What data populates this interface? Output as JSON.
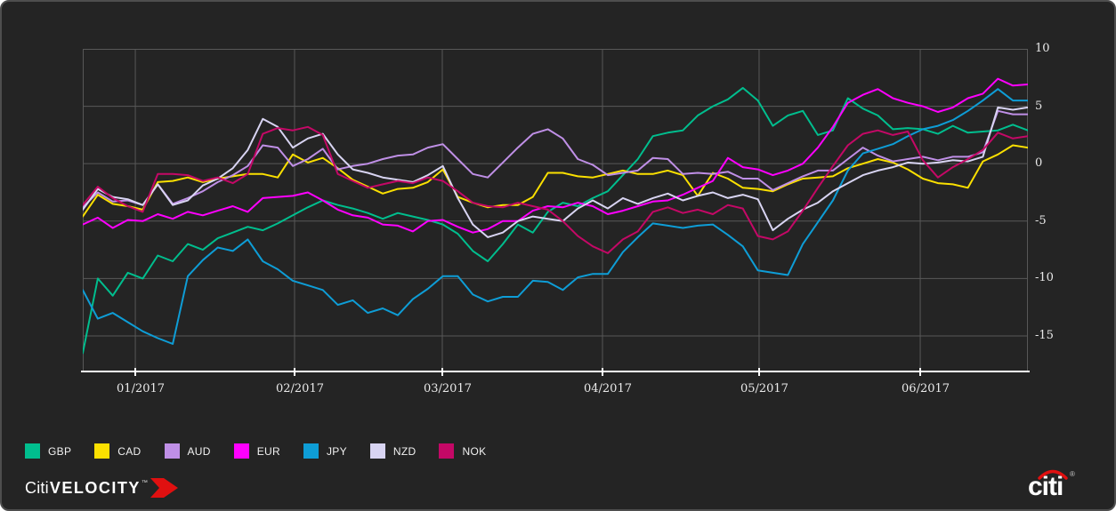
{
  "colors": {
    "page_bg": "#ffffff",
    "panel_bg": "#242424",
    "panel_border": "#4e4e4e",
    "grid": "#585858",
    "axis_line": "#ffffff",
    "tick_text": "#e9e9e9",
    "accent_red": "#e01010"
  },
  "chart_data": {
    "type": "line",
    "title": "",
    "xlabel": "",
    "ylabel": "",
    "grid": true,
    "legend_position": "bottom-left",
    "ylim": [
      -18.1,
      10
    ],
    "y_ticks": [
      {
        "label": "10",
        "value": 10
      },
      {
        "label": "5",
        "value": 5
      },
      {
        "label": "0",
        "value": 0
      },
      {
        "label": "-5",
        "value": -5
      },
      {
        "label": "-10",
        "value": -10
      },
      {
        "label": "-15",
        "value": -15
      }
    ],
    "x_ticks": [
      {
        "label": "01/2017",
        "pos": 0.0556
      },
      {
        "label": "02/2017",
        "pos": 0.2241
      },
      {
        "label": "03/2017",
        "pos": 0.3804
      },
      {
        "label": "04/2017",
        "pos": 0.5499
      },
      {
        "label": "05/2017",
        "pos": 0.7156
      },
      {
        "label": "06/2017",
        "pos": 0.8861
      }
    ],
    "x_range_note": "daily currency performance, late Dec 2016 through late Jun 2017, sampled at 64 evenly spaced points",
    "series": [
      {
        "name": "GBP",
        "color": "#00be8e",
        "values": [
          -16.5,
          -10.0,
          -11.5,
          -9.5,
          -10.0,
          -8.0,
          -8.5,
          -7.0,
          -7.5,
          -6.5,
          -6.0,
          -5.5,
          -5.8,
          -5.2,
          -4.5,
          -3.8,
          -3.2,
          -3.6,
          -3.9,
          -4.3,
          -4.8,
          -4.3,
          -4.6,
          -4.9,
          -5.3,
          -6.1,
          -7.6,
          -8.5,
          -7.0,
          -5.3,
          -6.0,
          -4.2,
          -3.4,
          -3.7,
          -3.0,
          -2.4,
          -1.0,
          0.4,
          2.4,
          2.7,
          2.9,
          4.2,
          5.0,
          5.6,
          6.6,
          5.5,
          3.3,
          4.2,
          4.6,
          2.5,
          2.9,
          5.7,
          4.8,
          4.2,
          3.0,
          3.1,
          3.0,
          2.6,
          3.3,
          2.7,
          2.8,
          2.9,
          3.4,
          2.9
        ]
      },
      {
        "name": "CAD",
        "color": "#fbe000",
        "values": [
          -4.6,
          -2.7,
          -3.5,
          -3.7,
          -4.0,
          -1.6,
          -1.5,
          -1.2,
          -1.6,
          -1.3,
          -1.1,
          -0.9,
          -0.9,
          -1.2,
          0.8,
          0.1,
          0.5,
          -0.4,
          -1.4,
          -2.0,
          -2.6,
          -2.2,
          -2.1,
          -1.6,
          -0.5,
          -2.9,
          -3.4,
          -3.8,
          -3.6,
          -3.6,
          -2.9,
          -0.8,
          -0.8,
          -1.1,
          -1.2,
          -0.9,
          -0.6,
          -0.9,
          -0.9,
          -0.6,
          -1.0,
          -2.8,
          -0.8,
          -1.3,
          -2.1,
          -2.2,
          -2.4,
          -1.8,
          -1.3,
          -1.2,
          -1.1,
          -0.4,
          0.0,
          0.4,
          0.1,
          -0.5,
          -1.3,
          -1.7,
          -1.8,
          -2.1,
          0.2,
          0.8,
          1.6,
          1.4
        ]
      },
      {
        "name": "AUD",
        "color": "#bf8fe6",
        "values": [
          -3.8,
          -2.5,
          -3.3,
          -3.2,
          -3.6,
          -1.8,
          -3.5,
          -3.0,
          -2.4,
          -1.6,
          -1.0,
          -0.2,
          1.6,
          1.4,
          -0.2,
          0.4,
          1.3,
          -0.5,
          -0.2,
          0.0,
          0.4,
          0.7,
          0.8,
          1.4,
          1.7,
          0.4,
          -0.9,
          -1.2,
          0.1,
          1.4,
          2.6,
          3.0,
          2.2,
          0.4,
          -0.1,
          -1.0,
          -0.8,
          -0.6,
          0.5,
          0.4,
          -0.9,
          -0.8,
          -0.9,
          -0.7,
          -1.3,
          -1.3,
          -2.3,
          -1.7,
          -1.1,
          -0.6,
          -0.6,
          0.4,
          1.4,
          0.7,
          0.2,
          0.4,
          0.6,
          0.3,
          0.6,
          0.6,
          1.0,
          4.6,
          4.3,
          4.3
        ]
      },
      {
        "name": "EUR",
        "color": "#ff00ff",
        "values": [
          -5.3,
          -4.7,
          -5.6,
          -4.9,
          -5.0,
          -4.4,
          -4.8,
          -4.2,
          -4.5,
          -4.1,
          -3.7,
          -4.2,
          -3.0,
          -2.9,
          -2.8,
          -2.5,
          -3.2,
          -4.0,
          -4.5,
          -4.7,
          -5.3,
          -5.4,
          -5.9,
          -5.0,
          -4.9,
          -5.5,
          -6.0,
          -5.7,
          -5.0,
          -5.0,
          -4.1,
          -3.7,
          -3.8,
          -3.4,
          -3.7,
          -4.4,
          -4.1,
          -3.7,
          -3.3,
          -3.2,
          -2.7,
          -2.1,
          -1.5,
          0.5,
          -0.3,
          -0.5,
          -1.0,
          -0.6,
          0.0,
          1.4,
          3.2,
          5.3,
          6.0,
          6.5,
          5.7,
          5.3,
          5.0,
          4.5,
          4.9,
          5.7,
          6.1,
          7.4,
          6.8,
          6.9
        ]
      },
      {
        "name": "JPY",
        "color": "#0e9dd6",
        "values": [
          -11.0,
          -13.5,
          -13.0,
          -13.8,
          -14.6,
          -15.2,
          -15.7,
          -9.8,
          -8.4,
          -7.3,
          -7.6,
          -6.6,
          -8.5,
          -9.2,
          -10.2,
          -10.6,
          -11.0,
          -12.3,
          -11.9,
          -13.0,
          -12.6,
          -13.2,
          -11.8,
          -10.9,
          -9.8,
          -9.8,
          -11.4,
          -12.0,
          -11.6,
          -11.6,
          -10.2,
          -10.3,
          -11.0,
          -9.9,
          -9.6,
          -9.6,
          -7.7,
          -6.4,
          -5.2,
          -5.4,
          -5.6,
          -5.4,
          -5.3,
          -6.2,
          -7.2,
          -9.3,
          -9.5,
          -9.7,
          -7.0,
          -5.1,
          -3.2,
          -0.6,
          0.9,
          1.3,
          1.7,
          2.4,
          3.0,
          3.3,
          3.8,
          4.6,
          5.5,
          6.5,
          5.5,
          5.5
        ]
      },
      {
        "name": "NZD",
        "color": "#d8d4f2",
        "values": [
          -4.0,
          -2.2,
          -2.9,
          -3.1,
          -3.6,
          -1.8,
          -3.6,
          -3.2,
          -1.9,
          -1.3,
          -0.4,
          1.2,
          3.9,
          3.2,
          1.4,
          2.2,
          2.6,
          0.8,
          -0.5,
          -0.8,
          -1.2,
          -1.4,
          -1.6,
          -1.0,
          -0.2,
          -3.0,
          -5.3,
          -6.4,
          -6.0,
          -5.0,
          -4.6,
          -4.8,
          -5.0,
          -3.9,
          -3.2,
          -3.9,
          -3.0,
          -3.5,
          -3.0,
          -2.6,
          -3.2,
          -2.8,
          -2.5,
          -3.0,
          -2.7,
          -3.1,
          -5.8,
          -4.8,
          -4.0,
          -3.4,
          -2.4,
          -1.7,
          -1.0,
          -0.6,
          -0.3,
          0.1,
          0.0,
          0.1,
          0.3,
          0.2,
          0.6,
          4.9,
          4.7,
          4.9
        ]
      },
      {
        "name": "NOK",
        "color": "#c40866",
        "values": [
          -3.6,
          -2.0,
          -3.0,
          -3.7,
          -4.2,
          -0.9,
          -0.9,
          -1.0,
          -1.5,
          -1.2,
          -1.7,
          -0.9,
          2.6,
          3.1,
          2.9,
          3.2,
          2.5,
          -0.9,
          -1.5,
          -2.1,
          -1.8,
          -1.5,
          -1.7,
          -1.2,
          -1.5,
          -2.4,
          -3.4,
          -3.7,
          -3.8,
          -3.4,
          -3.7,
          -4.0,
          -5.0,
          -6.3,
          -7.2,
          -7.8,
          -6.6,
          -5.9,
          -4.2,
          -3.8,
          -4.3,
          -4.0,
          -4.4,
          -3.6,
          -3.9,
          -6.3,
          -6.6,
          -5.9,
          -4.1,
          -2.1,
          -0.2,
          1.6,
          2.6,
          2.9,
          2.5,
          2.8,
          0.3,
          -1.2,
          -0.3,
          0.4,
          1.2,
          2.7,
          2.2,
          2.4
        ]
      }
    ]
  },
  "branding": {
    "velocity_citi": "Citi",
    "velocity_word": "VELOCITY",
    "velocity_tm": "TM",
    "citi_logo_text": "citi",
    "citi_logo_reg": "®"
  }
}
